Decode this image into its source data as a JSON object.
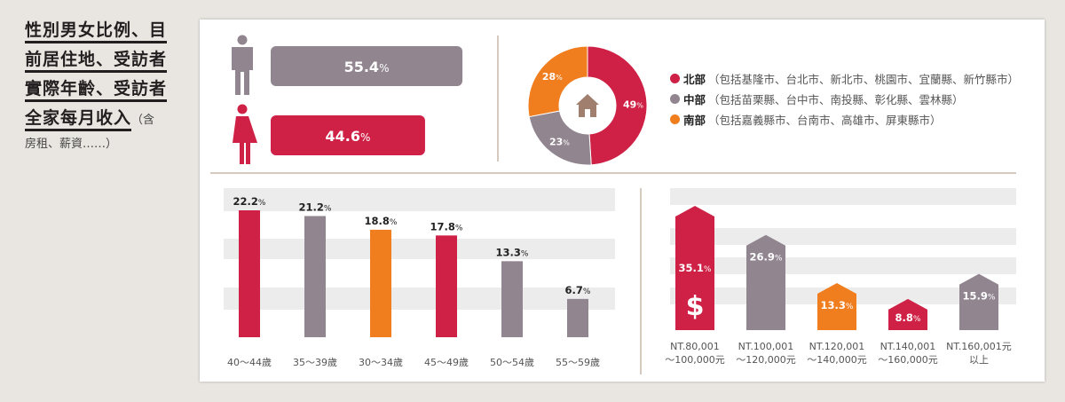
{
  "title": {
    "lines": [
      "性別男女比例、目",
      "前居住地、受訪者",
      "實際年齡、受訪者",
      "全家每月收入"
    ],
    "note_inline": "（含",
    "note_line2": "房租、薪資……）"
  },
  "colors": {
    "red": "#cf2146",
    "gray": "#918690",
    "orange": "#f07d1e",
    "band": "#ececec",
    "divider": "#c8b8a9"
  },
  "chart_data": [
    {
      "type": "bar",
      "orientation": "horizontal",
      "categories": [
        "male",
        "female"
      ],
      "values": [
        55.4,
        44.6
      ],
      "labels": [
        "55.4%",
        "44.6%"
      ],
      "icons": [
        "male-icon",
        "female-icon"
      ],
      "colors": [
        "#918690",
        "#cf2146"
      ]
    },
    {
      "type": "pie",
      "donut": true,
      "center_icon": "house-icon",
      "slices": [
        {
          "name": "北部",
          "detail": "（包括基隆市、台北市、新北市、桃園市、宜蘭縣、新竹縣市）",
          "value": 49,
          "label": "49%",
          "color": "#cf2146"
        },
        {
          "name": "中部",
          "detail": "（包括苗栗縣、台中市、南投縣、彰化縣、雲林縣）",
          "value": 23,
          "label": "23%",
          "color": "#918690"
        },
        {
          "name": "南部",
          "detail": "（包括嘉義縣市、台南市、高雄市、屏東縣市）",
          "value": 28,
          "label": "28%",
          "color": "#f07d1e"
        }
      ]
    },
    {
      "type": "bar",
      "categories": [
        "40～44歲",
        "35～39歲",
        "30～34歲",
        "45～49歲",
        "50～54歲",
        "55～59歲"
      ],
      "values": [
        22.2,
        21.2,
        18.8,
        17.8,
        13.3,
        6.7
      ],
      "labels": [
        "22.2%",
        "21.2%",
        "18.8%",
        "17.8%",
        "13.3%",
        "6.7%"
      ],
      "colors": [
        "#cf2146",
        "#918690",
        "#f07d1e",
        "#cf2146",
        "#918690",
        "#918690"
      ],
      "ylim": [
        0,
        26
      ]
    },
    {
      "type": "bar",
      "categories": [
        "NT.80,001\n～100,000元",
        "NT.100,001\n～120,000元",
        "NT.120,001\n～140,000元",
        "NT.140,001\n～160,000元",
        "NT.160,001元\n以上"
      ],
      "values": [
        35.1,
        26.9,
        13.3,
        8.8,
        15.9
      ],
      "labels": [
        "35.1%",
        "26.9%",
        "13.3%",
        "8.8%",
        "15.9%"
      ],
      "colors": [
        "#cf2146",
        "#918690",
        "#f07d1e",
        "#cf2146",
        "#918690"
      ],
      "icon": "dollar-icon",
      "ylim": [
        0,
        40
      ]
    }
  ]
}
